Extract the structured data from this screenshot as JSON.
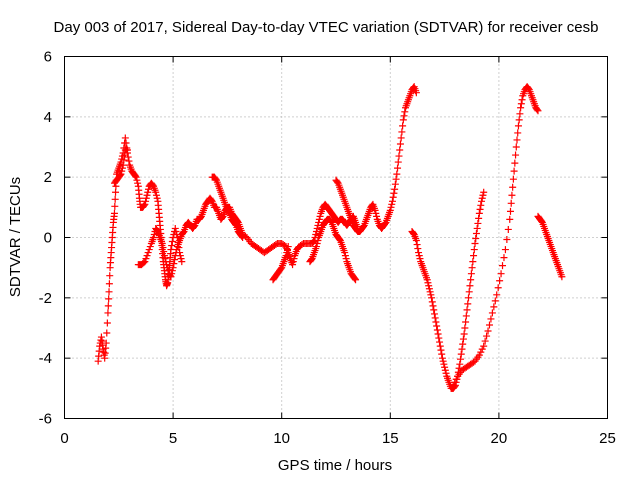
{
  "chart_data": {
    "type": "scatter",
    "title": "Day 003 of 2017, Sidereal Day-to-day VTEC variation (SDTVAR) for receiver cesb",
    "xlabel": "GPS time / hours",
    "ylabel": "SDTVAR / TECUs",
    "xlim": [
      0,
      25
    ],
    "ylim": [
      -6,
      6
    ],
    "xticks": [
      "0",
      "5",
      "10",
      "15",
      "20",
      "25"
    ],
    "yticks": [
      "-6",
      "-4",
      "-2",
      "0",
      "2",
      "4",
      "6"
    ],
    "grid": true,
    "legend": "none",
    "marker": "+",
    "color": "#ff0000",
    "segments": [
      [
        [
          1.55,
          -4.1
        ],
        [
          1.62,
          -3.6
        ],
        [
          1.7,
          -3.3
        ],
        [
          1.78,
          -3.7
        ],
        [
          1.85,
          -4.0
        ],
        [
          1.92,
          -3.5
        ],
        [
          2.0,
          -2.5
        ],
        [
          2.05,
          -1.8
        ],
        [
          2.1,
          -1.0
        ],
        [
          2.15,
          -0.5
        ],
        [
          2.2,
          0.0
        ],
        [
          2.25,
          0.5
        ],
        [
          2.3,
          0.8
        ],
        [
          2.35,
          1.5
        ],
        [
          2.4,
          2.1
        ],
        [
          2.5,
          2.3
        ],
        [
          2.6,
          2.5
        ],
        [
          2.7,
          2.8
        ],
        [
          2.8,
          3.3
        ],
        [
          2.9,
          2.8
        ],
        [
          3.0,
          2.4
        ],
        [
          3.1,
          2.2
        ],
        [
          3.2,
          2.1
        ],
        [
          3.3,
          2.0
        ],
        [
          3.4,
          1.7
        ],
        [
          3.45,
          1.3
        ],
        [
          3.5,
          1.0
        ],
        [
          3.6,
          1.0
        ],
        [
          3.7,
          1.1
        ],
        [
          3.8,
          1.4
        ],
        [
          3.9,
          1.7
        ],
        [
          4.0,
          1.8
        ],
        [
          4.1,
          1.7
        ],
        [
          4.2,
          1.5
        ],
        [
          4.3,
          1.2
        ],
        [
          4.35,
          0.8
        ],
        [
          4.4,
          0.4
        ],
        [
          4.45,
          0.0
        ],
        [
          4.5,
          -0.4
        ],
        [
          4.55,
          -0.8
        ],
        [
          4.6,
          -1.1
        ],
        [
          4.65,
          -1.4
        ],
        [
          4.7,
          -1.6
        ],
        [
          4.75,
          -1.5
        ],
        [
          4.8,
          -1.2
        ],
        [
          4.85,
          -0.8
        ],
        [
          4.9,
          -0.4
        ],
        [
          5.0,
          0.0
        ],
        [
          5.1,
          0.3
        ],
        [
          5.2,
          0.0
        ],
        [
          5.3,
          -0.5
        ],
        [
          5.4,
          -0.8
        ]
      ],
      [
        [
          3.4,
          -0.9
        ],
        [
          3.55,
          -0.9
        ],
        [
          3.7,
          -0.8
        ],
        [
          3.85,
          -0.5
        ],
        [
          4.0,
          -0.2
        ],
        [
          4.1,
          0.0
        ],
        [
          4.2,
          0.3
        ],
        [
          4.3,
          0.2
        ],
        [
          4.4,
          0.0
        ],
        [
          4.5,
          -0.2
        ],
        [
          4.6,
          -0.6
        ],
        [
          4.7,
          -0.9
        ],
        [
          4.8,
          -1.2
        ],
        [
          4.9,
          -1.3
        ],
        [
          5.0,
          -1.0
        ],
        [
          5.1,
          -0.6
        ],
        [
          5.2,
          -0.3
        ],
        [
          5.3,
          -0.1
        ],
        [
          5.4,
          0.1
        ],
        [
          5.5,
          0.2
        ],
        [
          5.6,
          0.4
        ],
        [
          5.7,
          0.5
        ],
        [
          5.8,
          0.4
        ],
        [
          5.9,
          0.3
        ],
        [
          6.0,
          0.4
        ],
        [
          6.1,
          0.6
        ],
        [
          6.2,
          0.6
        ],
        [
          6.3,
          0.7
        ],
        [
          6.4,
          0.9
        ],
        [
          6.5,
          1.1
        ],
        [
          6.6,
          1.2
        ],
        [
          6.7,
          1.3
        ],
        [
          6.8,
          1.2
        ],
        [
          6.9,
          1.0
        ],
        [
          7.0,
          1.0
        ],
        [
          7.1,
          0.8
        ],
        [
          7.2,
          0.6
        ],
        [
          7.3,
          0.7
        ],
        [
          7.4,
          0.9
        ],
        [
          7.5,
          1.0
        ],
        [
          7.6,
          1.0
        ],
        [
          7.7,
          0.8
        ],
        [
          7.8,
          0.7
        ],
        [
          7.9,
          0.6
        ],
        [
          8.0,
          0.5
        ],
        [
          8.1,
          0.3
        ],
        [
          8.2,
          0.1
        ],
        [
          8.4,
          0.0
        ],
        [
          8.6,
          -0.2
        ],
        [
          8.8,
          -0.3
        ],
        [
          9.0,
          -0.4
        ],
        [
          9.2,
          -0.5
        ],
        [
          9.4,
          -0.4
        ],
        [
          9.6,
          -0.3
        ],
        [
          9.8,
          -0.2
        ],
        [
          10.0,
          -0.2
        ],
        [
          10.2,
          -0.3
        ],
        [
          10.3,
          -0.5
        ],
        [
          10.4,
          -0.7
        ],
        [
          10.5,
          -0.9
        ],
        [
          10.6,
          -0.6
        ],
        [
          10.7,
          -0.4
        ],
        [
          10.8,
          -0.3
        ],
        [
          11.0,
          -0.2
        ],
        [
          11.2,
          -0.2
        ],
        [
          11.4,
          -0.2
        ],
        [
          11.5,
          -0.1
        ],
        [
          11.6,
          0.2
        ],
        [
          11.7,
          0.5
        ],
        [
          11.8,
          0.8
        ],
        [
          11.9,
          1.0
        ],
        [
          12.0,
          1.1
        ],
        [
          12.1,
          1.0
        ],
        [
          12.2,
          0.9
        ],
        [
          12.3,
          0.8
        ],
        [
          12.4,
          0.7
        ],
        [
          12.5,
          0.6
        ],
        [
          12.6,
          0.5
        ],
        [
          12.7,
          0.6
        ],
        [
          12.8,
          0.6
        ],
        [
          12.9,
          0.5
        ],
        [
          13.0,
          0.4
        ],
        [
          13.1,
          0.5
        ],
        [
          13.2,
          0.6
        ],
        [
          13.3,
          0.7
        ],
        [
          13.4,
          0.5
        ],
        [
          13.5,
          0.3
        ]
      ],
      [
        [
          9.6,
          -1.4
        ],
        [
          9.7,
          -1.3
        ],
        [
          9.8,
          -1.2
        ],
        [
          9.9,
          -1.1
        ],
        [
          10.0,
          -1.0
        ],
        [
          10.1,
          -0.8
        ],
        [
          10.2,
          -0.6
        ],
        [
          10.3,
          -0.3
        ]
      ],
      [
        [
          11.3,
          -0.8
        ],
        [
          11.4,
          -0.7
        ],
        [
          11.5,
          -0.5
        ],
        [
          11.6,
          -0.3
        ],
        [
          11.7,
          0.0
        ],
        [
          11.8,
          0.2
        ],
        [
          11.9,
          0.4
        ],
        [
          12.0,
          0.5
        ],
        [
          12.1,
          0.6
        ],
        [
          12.2,
          0.6
        ],
        [
          12.3,
          0.5
        ],
        [
          12.4,
          0.3
        ],
        [
          12.5,
          0.1
        ],
        [
          12.6,
          0.0
        ],
        [
          12.7,
          -0.1
        ],
        [
          12.8,
          -0.3
        ],
        [
          12.9,
          -0.5
        ],
        [
          13.0,
          -0.8
        ],
        [
          13.1,
          -1.0
        ],
        [
          13.2,
          -1.2
        ],
        [
          13.3,
          -1.3
        ],
        [
          13.4,
          -1.4
        ]
      ],
      [
        [
          12.5,
          1.9
        ],
        [
          12.6,
          1.8
        ],
        [
          12.7,
          1.6
        ],
        [
          12.8,
          1.4
        ],
        [
          12.9,
          1.2
        ],
        [
          13.0,
          1.0
        ],
        [
          13.1,
          0.8
        ],
        [
          13.2,
          0.6
        ],
        [
          13.3,
          0.4
        ],
        [
          13.4,
          0.3
        ],
        [
          13.5,
          0.2
        ],
        [
          13.6,
          0.2
        ],
        [
          13.7,
          0.3
        ],
        [
          13.8,
          0.4
        ],
        [
          13.9,
          0.6
        ],
        [
          14.0,
          0.8
        ],
        [
          14.1,
          1.0
        ],
        [
          14.2,
          1.1
        ],
        [
          14.3,
          0.9
        ],
        [
          14.4,
          0.6
        ],
        [
          14.5,
          0.4
        ],
        [
          14.6,
          0.3
        ],
        [
          14.7,
          0.4
        ],
        [
          14.8,
          0.5
        ],
        [
          14.9,
          0.7
        ],
        [
          15.0,
          0.9
        ],
        [
          15.1,
          1.2
        ],
        [
          15.2,
          1.6
        ],
        [
          15.3,
          2.1
        ],
        [
          15.4,
          2.7
        ],
        [
          15.5,
          3.3
        ],
        [
          15.6,
          3.9
        ],
        [
          15.7,
          4.3
        ],
        [
          15.8,
          4.5
        ],
        [
          15.9,
          4.7
        ],
        [
          16.0,
          4.9
        ],
        [
          16.1,
          5.0
        ],
        [
          16.2,
          4.8
        ]
      ],
      [
        [
          6.8,
          2.0
        ],
        [
          6.9,
          2.0
        ],
        [
          7.0,
          1.9
        ],
        [
          7.1,
          1.7
        ],
        [
          7.2,
          1.5
        ],
        [
          7.3,
          1.3
        ],
        [
          7.4,
          1.1
        ],
        [
          7.5,
          0.9
        ],
        [
          7.6,
          0.8
        ],
        [
          7.7,
          0.6
        ],
        [
          7.8,
          0.5
        ],
        [
          7.9,
          0.4
        ],
        [
          8.0,
          0.2
        ],
        [
          8.1,
          0.1
        ],
        [
          8.2,
          0.0
        ]
      ],
      [
        [
          2.3,
          1.8
        ],
        [
          2.4,
          1.9
        ],
        [
          2.5,
          2.0
        ],
        [
          2.6,
          2.1
        ],
        [
          2.7,
          2.4
        ],
        [
          2.8,
          2.9
        ],
        [
          2.9,
          2.9
        ]
      ],
      [
        [
          16.0,
          0.2
        ],
        [
          16.1,
          0.1
        ],
        [
          16.2,
          -0.1
        ],
        [
          16.3,
          -0.5
        ],
        [
          16.4,
          -0.8
        ],
        [
          16.5,
          -1.0
        ],
        [
          16.6,
          -1.2
        ],
        [
          16.7,
          -1.4
        ],
        [
          16.8,
          -1.7
        ],
        [
          16.9,
          -2.0
        ],
        [
          17.0,
          -2.4
        ],
        [
          17.1,
          -2.8
        ],
        [
          17.2,
          -3.2
        ],
        [
          17.3,
          -3.6
        ],
        [
          17.4,
          -4.0
        ],
        [
          17.5,
          -4.3
        ],
        [
          17.6,
          -4.6
        ],
        [
          17.7,
          -4.8
        ],
        [
          17.8,
          -5.0
        ],
        [
          17.9,
          -5.0
        ],
        [
          18.0,
          -4.9
        ],
        [
          18.1,
          -4.6
        ],
        [
          18.2,
          -4.2
        ],
        [
          18.3,
          -3.7
        ],
        [
          18.4,
          -3.2
        ],
        [
          18.5,
          -2.6
        ],
        [
          18.6,
          -2.0
        ],
        [
          18.7,
          -1.4
        ],
        [
          18.8,
          -0.8
        ],
        [
          18.9,
          -0.2
        ],
        [
          19.0,
          0.3
        ],
        [
          19.1,
          0.8
        ],
        [
          19.2,
          1.2
        ],
        [
          19.3,
          1.5
        ]
      ],
      [
        [
          17.9,
          -4.9
        ],
        [
          18.1,
          -4.6
        ],
        [
          18.3,
          -4.4
        ],
        [
          18.5,
          -4.3
        ],
        [
          18.7,
          -4.2
        ],
        [
          18.9,
          -4.1
        ],
        [
          19.1,
          -3.9
        ],
        [
          19.3,
          -3.6
        ],
        [
          19.5,
          -3.1
        ],
        [
          19.7,
          -2.5
        ],
        [
          19.9,
          -1.9
        ],
        [
          20.1,
          -1.2
        ],
        [
          20.3,
          -0.4
        ],
        [
          20.5,
          0.6
        ],
        [
          20.6,
          1.4
        ],
        [
          20.7,
          2.2
        ],
        [
          20.8,
          3.0
        ],
        [
          20.9,
          3.7
        ],
        [
          21.0,
          4.3
        ],
        [
          21.1,
          4.7
        ],
        [
          21.2,
          4.9
        ],
        [
          21.3,
          5.0
        ],
        [
          21.4,
          4.9
        ],
        [
          21.5,
          4.7
        ],
        [
          21.6,
          4.5
        ],
        [
          21.7,
          4.3
        ],
        [
          21.8,
          4.2
        ]
      ],
      [
        [
          21.8,
          0.7
        ],
        [
          21.9,
          0.6
        ],
        [
          22.0,
          0.5
        ],
        [
          22.1,
          0.3
        ],
        [
          22.2,
          0.1
        ],
        [
          22.3,
          -0.1
        ],
        [
          22.4,
          -0.3
        ],
        [
          22.5,
          -0.5
        ],
        [
          22.6,
          -0.7
        ],
        [
          22.7,
          -0.9
        ],
        [
          22.8,
          -1.1
        ],
        [
          22.9,
          -1.3
        ]
      ]
    ]
  }
}
